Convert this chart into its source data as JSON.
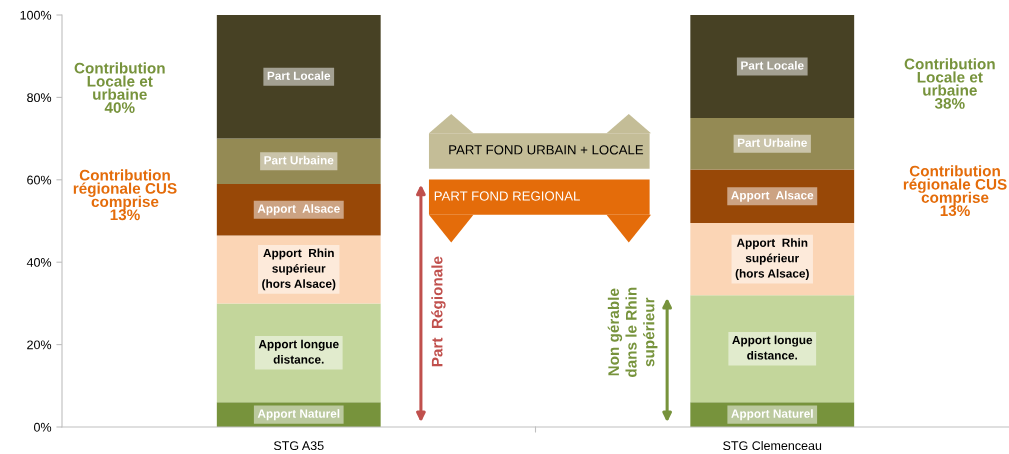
{
  "chart_data": {
    "type": "bar",
    "stacked": true,
    "categories": [
      "STG A35",
      "STG Clemenceau"
    ],
    "series": [
      {
        "name": "Apport Naturel",
        "color": "#77933c",
        "values": [
          6,
          6
        ]
      },
      {
        "name": "Apport longue\ndistance.",
        "color": "#c3d69b",
        "values": [
          24,
          26
        ]
      },
      {
        "name": "Apport  Rhin\nsupérieur\n(hors Alsace)",
        "color": "#fbd5b5",
        "values": [
          16.5,
          17.5
        ]
      },
      {
        "name": "Apport  Alsace",
        "color": "#984807",
        "values": [
          12.5,
          13
        ]
      },
      {
        "name": "Part Urbaine",
        "color": "#948a54",
        "values": [
          11,
          12.5
        ]
      },
      {
        "name": "Part Locale",
        "color": "#474124",
        "values": [
          30,
          25
        ]
      }
    ],
    "ylim": [
      0,
      100
    ],
    "yticks": [
      {
        "value": 0,
        "label": "0%"
      },
      {
        "value": 20,
        "label": "20%"
      },
      {
        "value": 40,
        "label": "40%"
      },
      {
        "value": 60,
        "label": "60%"
      },
      {
        "value": 80,
        "label": "80%"
      },
      {
        "value": 100,
        "label": "100%"
      }
    ],
    "grid": false,
    "annotations": [
      "Contribution\nLocale et\nurbaine\n40%",
      "Contribution\nrégionale CUS\ncomprise\n13%",
      "Contribution\nLocale et\nurbaine\n38%",
      "Contribution\nrégionale CUS\ncomprise\n13%",
      "PART FOND URBAIN + LOCALE",
      "PART FOND REGIONAL",
      "Part  Régionale",
      "Non gérable\ndans le Rhin\nsupérieur"
    ]
  }
}
